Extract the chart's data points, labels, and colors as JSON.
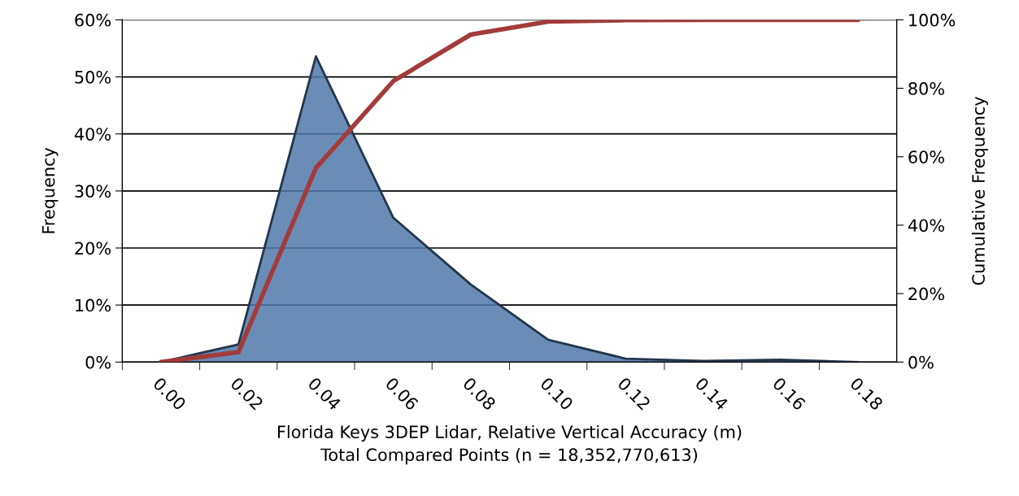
{
  "chart_data": {
    "type": "area",
    "xlabel": "Florida Keys 3DEP Lidar, Relative Vertical Accuracy (m)\nTotal Compared Points (n = 18,352,770,613)",
    "ylabel": "Frequency",
    "y2label": "Cumulative Frequency",
    "categories": [
      "0.00",
      "0.02",
      "0.04",
      "0.06",
      "0.08",
      "0.10",
      "0.12",
      "0.14",
      "0.16",
      "0.18"
    ],
    "series": [
      {
        "color": "#4f79aa",
        "values": [
          0,
          3.1,
          53.6,
          25.3,
          13.6,
          3.9,
          0.6,
          0.2,
          0.4,
          0
        ]
      },
      {
        "type": "line",
        "axis": "y2",
        "color": "#a33b3b",
        "values": [
          0,
          2.9,
          56.7,
          82.1,
          95.7,
          99.5,
          99.9,
          100,
          100,
          100
        ]
      }
    ],
    "ylim": [
      0,
      60
    ],
    "yticks": [
      {
        "value": 0,
        "label": "0%"
      },
      {
        "value": 10,
        "label": "10%"
      },
      {
        "value": 20,
        "label": "20%"
      },
      {
        "value": 30,
        "label": "30%"
      },
      {
        "value": 40,
        "label": "40%"
      },
      {
        "value": 50,
        "label": "50%"
      },
      {
        "value": 60,
        "label": "60%"
      }
    ],
    "y2lim": [
      0,
      100
    ],
    "y2ticks": [
      {
        "value": 0,
        "label": "0%"
      },
      {
        "value": 20,
        "label": "20%"
      },
      {
        "value": 40,
        "label": "40%"
      },
      {
        "value": 60,
        "label": "60%"
      },
      {
        "value": 80,
        "label": "80%"
      },
      {
        "value": 100,
        "label": "100%"
      }
    ],
    "grid": "y",
    "marker": "none",
    "line_style": "solid"
  }
}
